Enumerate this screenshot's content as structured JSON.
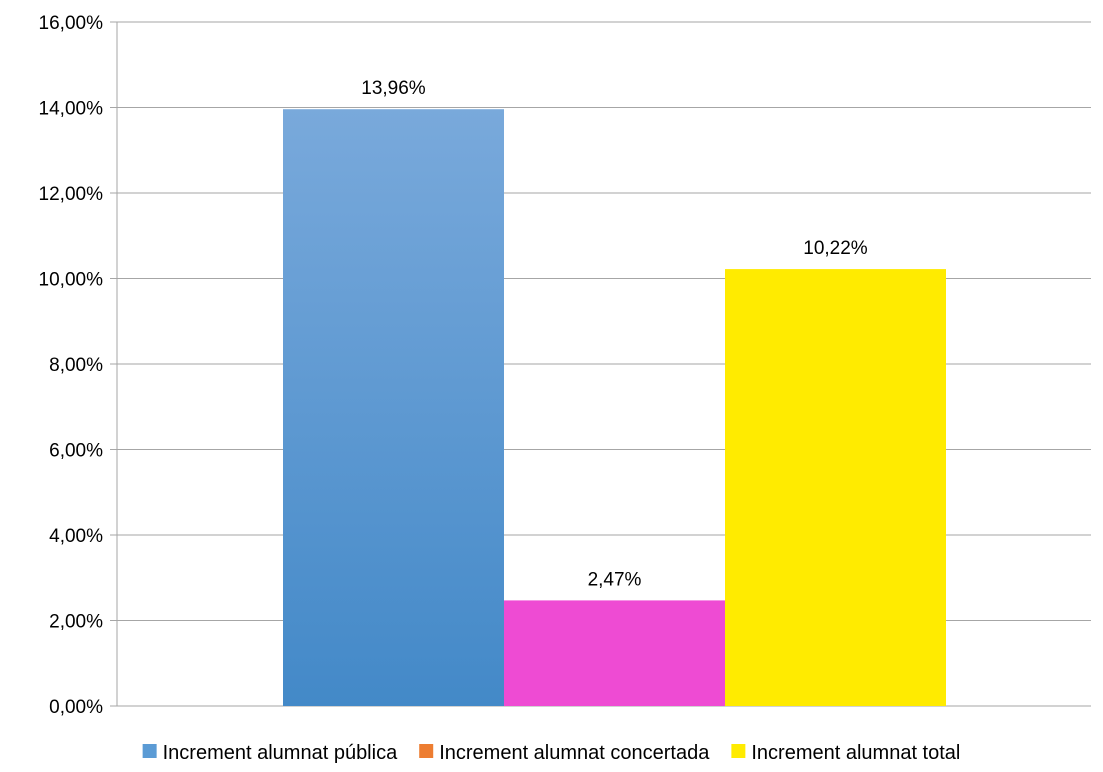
{
  "chart_data": {
    "type": "bar",
    "title": "",
    "xlabel": "",
    "ylabel": "",
    "ylim": [
      0,
      16
    ],
    "yticks": [
      0,
      2,
      4,
      6,
      8,
      10,
      12,
      14,
      16
    ],
    "ytick_labels": [
      "0,00%",
      "2,00%",
      "4,00%",
      "6,00%",
      "8,00%",
      "10,00%",
      "12,00%",
      "14,00%",
      "16,00%"
    ],
    "grid": "horizontal",
    "legend_position": "bottom",
    "series": [
      {
        "name": "Increment alumnat pública",
        "value": 13.96,
        "label": "13,96%",
        "color": "#5b9bd5",
        "legend_color": "#5b9bd5"
      },
      {
        "name": "Increment alumnat concertada",
        "value": 2.47,
        "label": "2,47%",
        "color": "#ee4bd3",
        "legend_color": "#ed7d31"
      },
      {
        "name": "Increment alumnat total",
        "value": 10.22,
        "label": "10,22%",
        "color": "#ffeb00",
        "legend_color": "#ffeb00"
      }
    ]
  }
}
